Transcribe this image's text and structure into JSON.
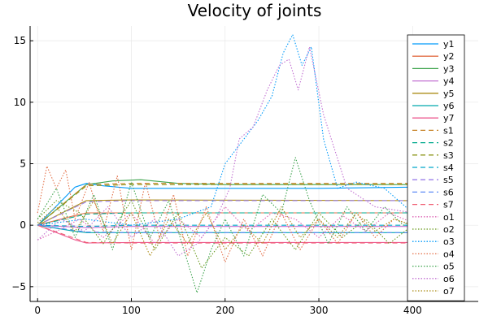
{
  "chart_data": {
    "type": "line",
    "title": "Velocity of joints",
    "xlabel": "",
    "ylabel": "",
    "xlim": [
      -8,
      470
    ],
    "ylim": [
      -6.2,
      16.2
    ],
    "xticks": [
      0,
      100,
      200,
      300,
      400
    ],
    "yticks": [
      -5,
      0,
      5,
      10,
      15
    ],
    "grid": true,
    "legend": "right",
    "series": [
      {
        "name": "y1",
        "style": "solid",
        "color": "#009AFA",
        "x": [
          0,
          40,
          52,
          70,
          100,
          150,
          200,
          300,
          400
        ],
        "y": [
          0,
          3.1,
          3.4,
          3.2,
          3.0,
          3.0,
          3.0,
          3.0,
          3.1
        ]
      },
      {
        "name": "y2",
        "style": "solid",
        "color": "#E36F47",
        "x": [
          0,
          40,
          52,
          100,
          400
        ],
        "y": [
          0,
          0.8,
          1.0,
          1.0,
          1.0
        ]
      },
      {
        "name": "y3",
        "style": "solid",
        "color": "#3EA44E",
        "x": [
          0,
          52,
          80,
          110,
          150,
          200,
          400
        ],
        "y": [
          0,
          3.3,
          3.6,
          3.7,
          3.4,
          3.3,
          3.3
        ]
      },
      {
        "name": "y4",
        "style": "solid",
        "color": "#C271D2",
        "x": [
          0,
          52,
          100,
          400
        ],
        "y": [
          0,
          -0.2,
          -0.1,
          -0.1
        ]
      },
      {
        "name": "y5",
        "style": "solid",
        "color": "#AC8D18",
        "x": [
          0,
          52,
          100,
          400
        ],
        "y": [
          0,
          2.0,
          2.05,
          2.0
        ]
      },
      {
        "name": "y6",
        "style": "solid",
        "color": "#00A9AD",
        "x": [
          0,
          40,
          52,
          100,
          400
        ],
        "y": [
          0,
          -0.5,
          -0.6,
          -0.6,
          -0.6
        ]
      },
      {
        "name": "y7",
        "style": "solid",
        "color": "#ED5E93",
        "x": [
          0,
          40,
          52,
          100,
          400
        ],
        "y": [
          0,
          -1.2,
          -1.45,
          -1.4,
          -1.4
        ]
      },
      {
        "name": "s1",
        "style": "dash",
        "color": "#C68225",
        "x": [
          0,
          52,
          100,
          400
        ],
        "y": [
          0,
          3.3,
          3.4,
          3.4
        ]
      },
      {
        "name": "s2",
        "style": "dash",
        "color": "#00A98D",
        "x": [
          0,
          52,
          100,
          400
        ],
        "y": [
          0,
          0.9,
          1.0,
          1.0
        ]
      },
      {
        "name": "s3",
        "style": "dash",
        "color": "#8E971D",
        "x": [
          0,
          52,
          100,
          400
        ],
        "y": [
          0,
          3.2,
          3.3,
          3.3
        ]
      },
      {
        "name": "s4",
        "style": "dash",
        "color": "#00A8CB",
        "x": [
          0,
          52,
          100,
          400
        ],
        "y": [
          0,
          -0.1,
          0,
          0
        ]
      },
      {
        "name": "s5",
        "style": "dash",
        "color": "#9B7FE9",
        "x": [
          0,
          52,
          100,
          400
        ],
        "y": [
          0,
          1.9,
          2.0,
          2.0
        ]
      },
      {
        "name": "s6",
        "style": "dash",
        "color": "#608CF6",
        "x": [
          0,
          52,
          100,
          400
        ],
        "y": [
          0,
          -0.55,
          -0.6,
          -0.6
        ]
      },
      {
        "name": "s7",
        "style": "dash",
        "color": "#F05F73",
        "x": [
          0,
          52,
          100,
          400
        ],
        "y": [
          0,
          -1.4,
          -1.45,
          -1.45
        ]
      },
      {
        "name": "o1",
        "style": "dot",
        "color": "#DD64B5",
        "x": [
          0,
          20,
          45,
          70,
          100,
          125,
          150,
          175,
          200,
          225,
          250,
          275,
          300,
          325,
          350,
          375,
          400
        ],
        "y": [
          -1.2,
          -0.5,
          0.5,
          -1.0,
          1.0,
          -1.5,
          0.5,
          -1.0,
          1.5,
          -0.5,
          1.0,
          0.5,
          -1.0,
          0.8,
          -0.5,
          1.0,
          0.2
        ]
      },
      {
        "name": "o2",
        "style": "dot",
        "color": "#6A9A1E",
        "x": [
          0,
          20,
          45,
          70,
          100,
          125,
          150,
          175,
          200,
          225,
          250,
          275,
          300,
          325,
          350,
          375,
          400
        ],
        "y": [
          0.5,
          2.0,
          1.0,
          -1.5,
          2.0,
          -2.0,
          1.0,
          -3.5,
          -1.0,
          -2.5,
          0.5,
          -2.0,
          1.0,
          -1.0,
          0.5,
          -1.5,
          0.0
        ]
      },
      {
        "name": "o3",
        "style": "dot",
        "color": "#009AFA",
        "x": [
          0,
          50,
          100,
          150,
          185,
          200,
          215,
          235,
          250,
          262,
          272,
          282,
          292,
          305,
          320,
          340,
          370,
          400
        ],
        "y": [
          0,
          0.5,
          0.0,
          0.5,
          1.5,
          5.0,
          6.5,
          8.5,
          10.5,
          14.0,
          15.5,
          13.0,
          14.5,
          7.0,
          3.0,
          3.5,
          3.0,
          1.0
        ]
      },
      {
        "name": "o4",
        "style": "dot",
        "color": "#E36F47",
        "x": [
          0,
          10,
          20,
          30,
          40,
          55,
          70,
          85,
          100,
          115,
          130,
          145,
          160,
          180,
          200,
          220,
          240,
          260,
          280,
          300,
          320,
          340,
          360,
          380,
          400
        ],
        "y": [
          1.0,
          4.8,
          3.0,
          4.5,
          0.5,
          3.5,
          -0.5,
          4.0,
          -2.0,
          3.5,
          -1.0,
          2.5,
          -2.5,
          1.5,
          -3.0,
          0.5,
          -2.5,
          1.0,
          -2.0,
          0.5,
          -1.5,
          1.0,
          -1.0,
          0.5,
          0.0
        ]
      },
      {
        "name": "o5",
        "style": "dot",
        "color": "#3EA44E",
        "x": [
          0,
          20,
          40,
          60,
          80,
          100,
          120,
          140,
          160,
          170,
          185,
          200,
          220,
          240,
          260,
          275,
          290,
          310,
          330,
          350,
          370,
          390,
          400
        ],
        "y": [
          0.5,
          3.0,
          -1.0,
          2.5,
          -2.0,
          3.5,
          -1.0,
          2.0,
          -3.0,
          -5.5,
          -2.0,
          0.5,
          -2.5,
          2.5,
          1.0,
          5.5,
          2.0,
          -1.5,
          1.5,
          -0.5,
          1.5,
          0.0,
          0.5
        ]
      },
      {
        "name": "o6",
        "style": "dot",
        "color": "#C271D2",
        "x": [
          0,
          25,
          50,
          75,
          100,
          125,
          150,
          170,
          190,
          205,
          215,
          230,
          245,
          258,
          268,
          278,
          290,
          305,
          330,
          360,
          400
        ],
        "y": [
          -1.2,
          0.5,
          -0.5,
          1.5,
          -1.0,
          0.5,
          -2.5,
          -1.5,
          0.5,
          3.0,
          7.0,
          8.0,
          11.0,
          13.0,
          13.5,
          11.0,
          14.5,
          9.0,
          3.0,
          1.5,
          1.0
        ]
      },
      {
        "name": "o7",
        "style": "dot",
        "color": "#AC8D18",
        "x": [
          0,
          20,
          40,
          60,
          80,
          100,
          120,
          140,
          160,
          180,
          200,
          220,
          240,
          260,
          280,
          300,
          320,
          340,
          360,
          380,
          400
        ],
        "y": [
          0.2,
          1.5,
          -0.5,
          2.0,
          -1.5,
          1.0,
          -2.5,
          0.5,
          -1.5,
          1.0,
          -2.0,
          0.0,
          -1.5,
          1.5,
          -1.0,
          0.5,
          -1.0,
          1.0,
          -0.5,
          0.5,
          0.0
        ]
      }
    ]
  }
}
